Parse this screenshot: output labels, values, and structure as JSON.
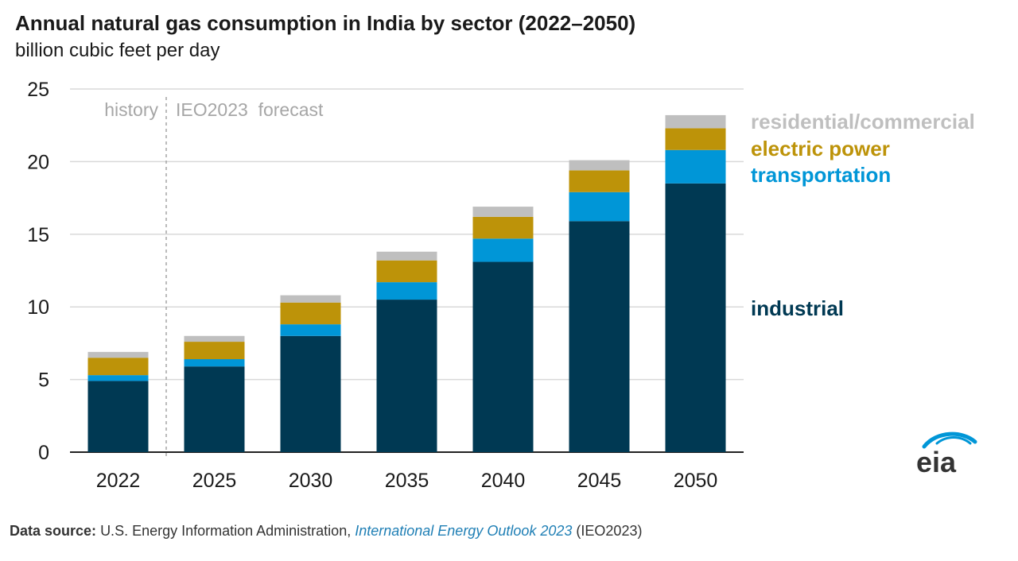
{
  "title": "Annual natural gas consumption in India by sector (2022–2050)",
  "subtitle": "billion cubic feet per day",
  "source": {
    "label": "Data source:",
    "agency": "U.S. Energy Information Administration,",
    "publication": "International Energy Outlook 2023",
    "suffix": "(IEO2023)"
  },
  "logo_text": "eia",
  "chart_data": {
    "type": "bar",
    "stacked": true,
    "categories": [
      "2022",
      "2025",
      "2030",
      "2035",
      "2040",
      "2045",
      "2050"
    ],
    "ylim": [
      0,
      25
    ],
    "yticks": [
      0,
      5,
      10,
      15,
      20,
      25
    ],
    "grid": true,
    "annotations": {
      "history": "history",
      "forecast": "IEO2023  forecast"
    },
    "series": [
      {
        "name": "industrial",
        "color": "#003953",
        "values": [
          4.9,
          5.9,
          8.0,
          10.5,
          13.1,
          15.9,
          18.5
        ]
      },
      {
        "name": "transportation",
        "color": "#0096d7",
        "values": [
          0.4,
          0.5,
          0.8,
          1.2,
          1.6,
          2.0,
          2.3
        ]
      },
      {
        "name": "electric power",
        "color": "#bd9309",
        "values": [
          1.2,
          1.2,
          1.5,
          1.5,
          1.5,
          1.5,
          1.5
        ]
      },
      {
        "name": "residential/commercial",
        "color": "#bfbfbf",
        "values": [
          0.4,
          0.4,
          0.5,
          0.6,
          0.7,
          0.7,
          0.9
        ]
      }
    ]
  }
}
